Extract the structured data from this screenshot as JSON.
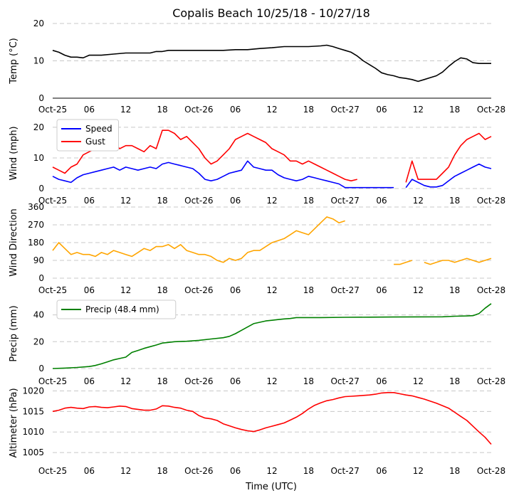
{
  "chart_data": {
    "type": "line",
    "title": "Copalis Beach 10/25/18 - 10/27/18",
    "xlabel": "Time (UTC)",
    "x_unit": "hours since 2018-10-25 00:00 UTC",
    "x_range": [
      0,
      72
    ],
    "x_ticks": [
      {
        "x": 0,
        "label": "Oct-25"
      },
      {
        "x": 6,
        "label": "06"
      },
      {
        "x": 12,
        "label": "12"
      },
      {
        "x": 18,
        "label": "18"
      },
      {
        "x": 24,
        "label": "Oct-26"
      },
      {
        "x": 30,
        "label": "06"
      },
      {
        "x": 36,
        "label": "12"
      },
      {
        "x": 42,
        "label": "18"
      },
      {
        "x": 48,
        "label": "Oct-27"
      },
      {
        "x": 54,
        "label": "06"
      },
      {
        "x": 60,
        "label": "12"
      },
      {
        "x": 66,
        "label": "18"
      },
      {
        "x": 72,
        "label": "Oct-28"
      }
    ],
    "panels": [
      {
        "id": "temp",
        "ylabel": "Temp ($^\\circ$C)",
        "ylabel_display": "Temp (°C)",
        "ylim": [
          0,
          20
        ],
        "yticks": [
          0,
          10,
          20
        ],
        "grid": "horizontal dashed",
        "series": [
          {
            "name": "Temp",
            "color": "#000000",
            "x": [
              0,
              1,
              2,
              3,
              4,
              5,
              6,
              8,
              10,
              12,
              14,
              16,
              17,
              18,
              19,
              20,
              22,
              24,
              26,
              28,
              30,
              32,
              34,
              36,
              38,
              40,
              42,
              44,
              45,
              46,
              47,
              48,
              49,
              50,
              51,
              52,
              53,
              54,
              55,
              56,
              57,
              58,
              59,
              60,
              61,
              62,
              63,
              64,
              65,
              66,
              67,
              68,
              69,
              70,
              71,
              72
            ],
            "y": [
              12.8,
              12.3,
              11.5,
              11.0,
              11.0,
              10.8,
              11.5,
              11.5,
              11.8,
              12.1,
              12.1,
              12.1,
              12.5,
              12.5,
              12.8,
              12.8,
              12.8,
              12.8,
              12.8,
              12.8,
              13.0,
              13.0,
              13.3,
              13.5,
              13.8,
              13.8,
              13.8,
              14.0,
              14.2,
              13.8,
              13.3,
              12.8,
              12.3,
              11.3,
              10.0,
              9.0,
              8.0,
              6.8,
              6.3,
              6.0,
              5.5,
              5.3,
              5.0,
              4.5,
              5.0,
              5.5,
              6.0,
              7.0,
              8.5,
              9.8,
              10.8,
              10.5,
              9.5,
              9.3,
              9.3,
              9.3
            ]
          }
        ]
      },
      {
        "id": "wind",
        "ylabel": "Wind (mph)",
        "ylim": [
          0,
          23
        ],
        "yticks": [
          0,
          10,
          20
        ],
        "grid": "horizontal dashed",
        "legend": {
          "position": "upper-left"
        },
        "series": [
          {
            "name": "Speed",
            "color": "#0000ff",
            "x": [
              0,
              1,
              2,
              3,
              4,
              5,
              6,
              7,
              8,
              9,
              10,
              11,
              12,
              13,
              14,
              15,
              16,
              17,
              18,
              19,
              20,
              21,
              22,
              23,
              24,
              25,
              26,
              27,
              28,
              29,
              30,
              31,
              32,
              33,
              34,
              35,
              36,
              37,
              38,
              39,
              40,
              41,
              42,
              43,
              44,
              45,
              46,
              47,
              48,
              49,
              50,
              51,
              52,
              53,
              54,
              55,
              56,
              57,
              58,
              59,
              60,
              61,
              62,
              63,
              64,
              65,
              66,
              67,
              68,
              69,
              70,
              71,
              72
            ],
            "y": [
              4,
              3,
              2.5,
              2,
              3.5,
              4.5,
              5,
              5.5,
              6,
              6.5,
              7,
              6,
              7,
              6.5,
              6,
              6.5,
              7,
              6.5,
              8,
              8.5,
              8,
              7.5,
              7,
              6.5,
              5,
              3,
              2.5,
              3,
              4,
              5,
              5.5,
              6,
              9,
              7,
              6.5,
              6,
              6,
              4.5,
              3.5,
              3,
              2.5,
              3,
              4,
              3.5,
              3,
              2.5,
              2,
              1.5,
              0.3,
              0.3,
              0.3,
              0.3,
              0.3,
              0.3,
              0.3,
              0.3,
              0.3,
              null,
              0.3,
              3,
              2,
              1,
              0.5,
              0.5,
              1,
              2.5,
              4,
              5,
              6,
              7,
              8,
              7,
              6.5
            ]
          },
          {
            "name": "Gust",
            "color": "#ff0000",
            "x": [
              0,
              1,
              2,
              3,
              4,
              5,
              6,
              7,
              8,
              9,
              10,
              11,
              12,
              13,
              14,
              15,
              16,
              17,
              18,
              19,
              20,
              21,
              22,
              23,
              24,
              25,
              26,
              27,
              28,
              29,
              30,
              31,
              32,
              33,
              34,
              35,
              36,
              37,
              38,
              39,
              40,
              41,
              42,
              43,
              44,
              45,
              46,
              47,
              48,
              49,
              50,
              51,
              52,
              53,
              54,
              55,
              56,
              57,
              58,
              59,
              60,
              61,
              62,
              63,
              64,
              65,
              66,
              67,
              68,
              69,
              70,
              71,
              72
            ],
            "y": [
              7,
              6,
              5,
              7,
              8,
              11,
              12,
              13,
              14,
              15,
              15,
              13,
              14,
              14,
              13,
              12,
              14,
              13,
              19,
              19,
              18,
              16,
              17,
              15,
              13,
              10,
              8,
              9,
              11,
              13,
              16,
              17,
              18,
              17,
              16,
              15,
              13,
              12,
              11,
              9,
              9,
              8,
              9,
              8,
              7,
              6,
              5,
              4,
              3,
              2.5,
              3,
              null,
              null,
              null,
              null,
              null,
              null,
              null,
              2,
              9,
              3,
              3,
              3,
              3,
              5,
              7,
              11,
              14,
              16,
              17,
              18,
              16,
              17
            ]
          }
        ]
      },
      {
        "id": "dir",
        "ylabel": "Wind Direction",
        "ylim": [
          0,
          360
        ],
        "yticks": [
          0,
          90,
          180,
          270,
          360
        ],
        "grid": "horizontal dashed",
        "series": [
          {
            "name": "Direction",
            "color": "#ffa500",
            "x": [
              0,
              1,
              2,
              3,
              4,
              5,
              6,
              7,
              8,
              9,
              10,
              11,
              12,
              13,
              14,
              15,
              16,
              17,
              18,
              19,
              20,
              21,
              22,
              23,
              24,
              25,
              26,
              27,
              28,
              29,
              30,
              31,
              32,
              33,
              34,
              35,
              36,
              37,
              38,
              39,
              40,
              41,
              42,
              43,
              44,
              45,
              46,
              47,
              48,
              49,
              50,
              51,
              52,
              53,
              54,
              55,
              56,
              57,
              58,
              59,
              60,
              61,
              62,
              63,
              64,
              65,
              66,
              67,
              68,
              69,
              70,
              71,
              72
            ],
            "y": [
              140,
              180,
              150,
              120,
              130,
              120,
              120,
              110,
              130,
              120,
              140,
              130,
              120,
              110,
              130,
              150,
              140,
              160,
              160,
              170,
              150,
              170,
              140,
              130,
              120,
              120,
              110,
              90,
              80,
              100,
              90,
              100,
              130,
              140,
              140,
              160,
              180,
              190,
              200,
              220,
              240,
              230,
              220,
              250,
              280,
              310,
              300,
              280,
              290,
              null,
              null,
              null,
              null,
              null,
              null,
              null,
              70,
              70,
              80,
              90,
              null,
              80,
              70,
              80,
              90,
              90,
              80,
              90,
              100,
              90,
              80,
              90,
              100
            ]
          }
        ]
      },
      {
        "id": "precip",
        "ylabel": "Precip (mm)",
        "ylim": [
          0,
          52
        ],
        "yticks": [
          0,
          20,
          40
        ],
        "grid": "horizontal dashed",
        "legend": {
          "position": "upper-left"
        },
        "series": [
          {
            "name": "Precip (48.4 mm)",
            "color": "#008000",
            "x": [
              0,
              2,
              4,
              6,
              7,
              8,
              9,
              10,
              11,
              12,
              13,
              14,
              15,
              16,
              17,
              18,
              19,
              20,
              22,
              24,
              26,
              28,
              29,
              30,
              31,
              32,
              33,
              34,
              35,
              36,
              37,
              38,
              39,
              40,
              42,
              44,
              48,
              52,
              56,
              60,
              64,
              66,
              68,
              69,
              70,
              71,
              72
            ],
            "y": [
              0,
              0.3,
              0.8,
              1.5,
              2.3,
              3.5,
              5,
              6.5,
              7.5,
              8.5,
              12,
              13.5,
              15,
              16.3,
              17.5,
              19,
              19.5,
              20,
              20.3,
              21,
              22,
              23,
              24,
              26,
              28.5,
              31,
              33.5,
              34.5,
              35.5,
              36,
              36.5,
              37,
              37.3,
              38,
              38,
              38,
              38.2,
              38.3,
              38.4,
              38.5,
              38.6,
              39,
              39.2,
              39.4,
              41,
              45,
              48.4
            ]
          }
        ]
      },
      {
        "id": "alt",
        "ylabel": "Altimeter (hPa)",
        "ylim": [
          1003.8,
          1020.6
        ],
        "yticks": [
          1005,
          1010,
          1015,
          1020
        ],
        "grid": "horizontal dashed",
        "series": [
          {
            "name": "Altimeter",
            "color": "#ff0000",
            "x": [
              0,
              1,
              2,
              3,
              4,
              5,
              6,
              7,
              8,
              9,
              10,
              11,
              12,
              13,
              14,
              15,
              16,
              17,
              18,
              19,
              20,
              21,
              22,
              23,
              24,
              25,
              26,
              27,
              28,
              29,
              30,
              31,
              32,
              33,
              34,
              35,
              36,
              37,
              38,
              39,
              40,
              41,
              42,
              43,
              44,
              45,
              46,
              47,
              48,
              49,
              50,
              51,
              52,
              53,
              54,
              55,
              56,
              57,
              58,
              59,
              60,
              61,
              62,
              63,
              64,
              65,
              66,
              67,
              68,
              69,
              70,
              71,
              72
            ],
            "y": [
              1015,
              1015.3,
              1015.8,
              1016,
              1015.8,
              1015.7,
              1016.1,
              1016.2,
              1016,
              1015.9,
              1016.1,
              1016.3,
              1016.2,
              1015.7,
              1015.5,
              1015.3,
              1015.3,
              1015.6,
              1016.4,
              1016.3,
              1016,
              1015.8,
              1015.3,
              1015,
              1014,
              1013.4,
              1013.2,
              1012.8,
              1012,
              1011.5,
              1011,
              1010.6,
              1010.3,
              1010.1,
              1010.5,
              1011,
              1011.4,
              1011.8,
              1012.2,
              1012.9,
              1013.6,
              1014.5,
              1015.6,
              1016.5,
              1017.1,
              1017.6,
              1017.9,
              1018.3,
              1018.6,
              1018.7,
              1018.8,
              1018.9,
              1019,
              1019.2,
              1019.5,
              1019.6,
              1019.6,
              1019.3,
              1019,
              1018.8,
              1018.4,
              1018,
              1017.5,
              1017,
              1016.4,
              1015.8,
              1014.8,
              1013.8,
              1012.8,
              1011.4,
              1010,
              1008.7,
              1007
            ]
          }
        ]
      }
    ]
  }
}
